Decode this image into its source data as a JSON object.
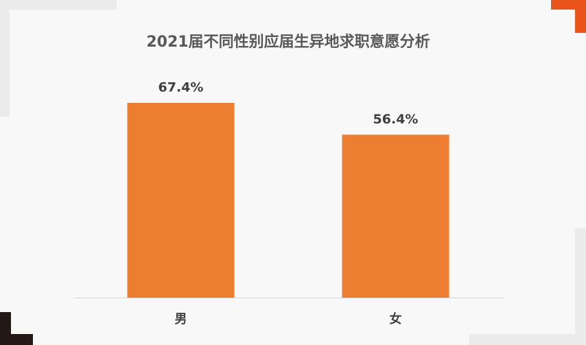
{
  "chart_data": {
    "type": "bar",
    "title": "2021届不同性别应届生异地求职意愿分析",
    "categories": [
      "男",
      "女"
    ],
    "values": [
      67.4,
      56.4
    ],
    "value_labels": [
      "67.4%",
      "56.4%"
    ],
    "color": "#ed7d31"
  }
}
